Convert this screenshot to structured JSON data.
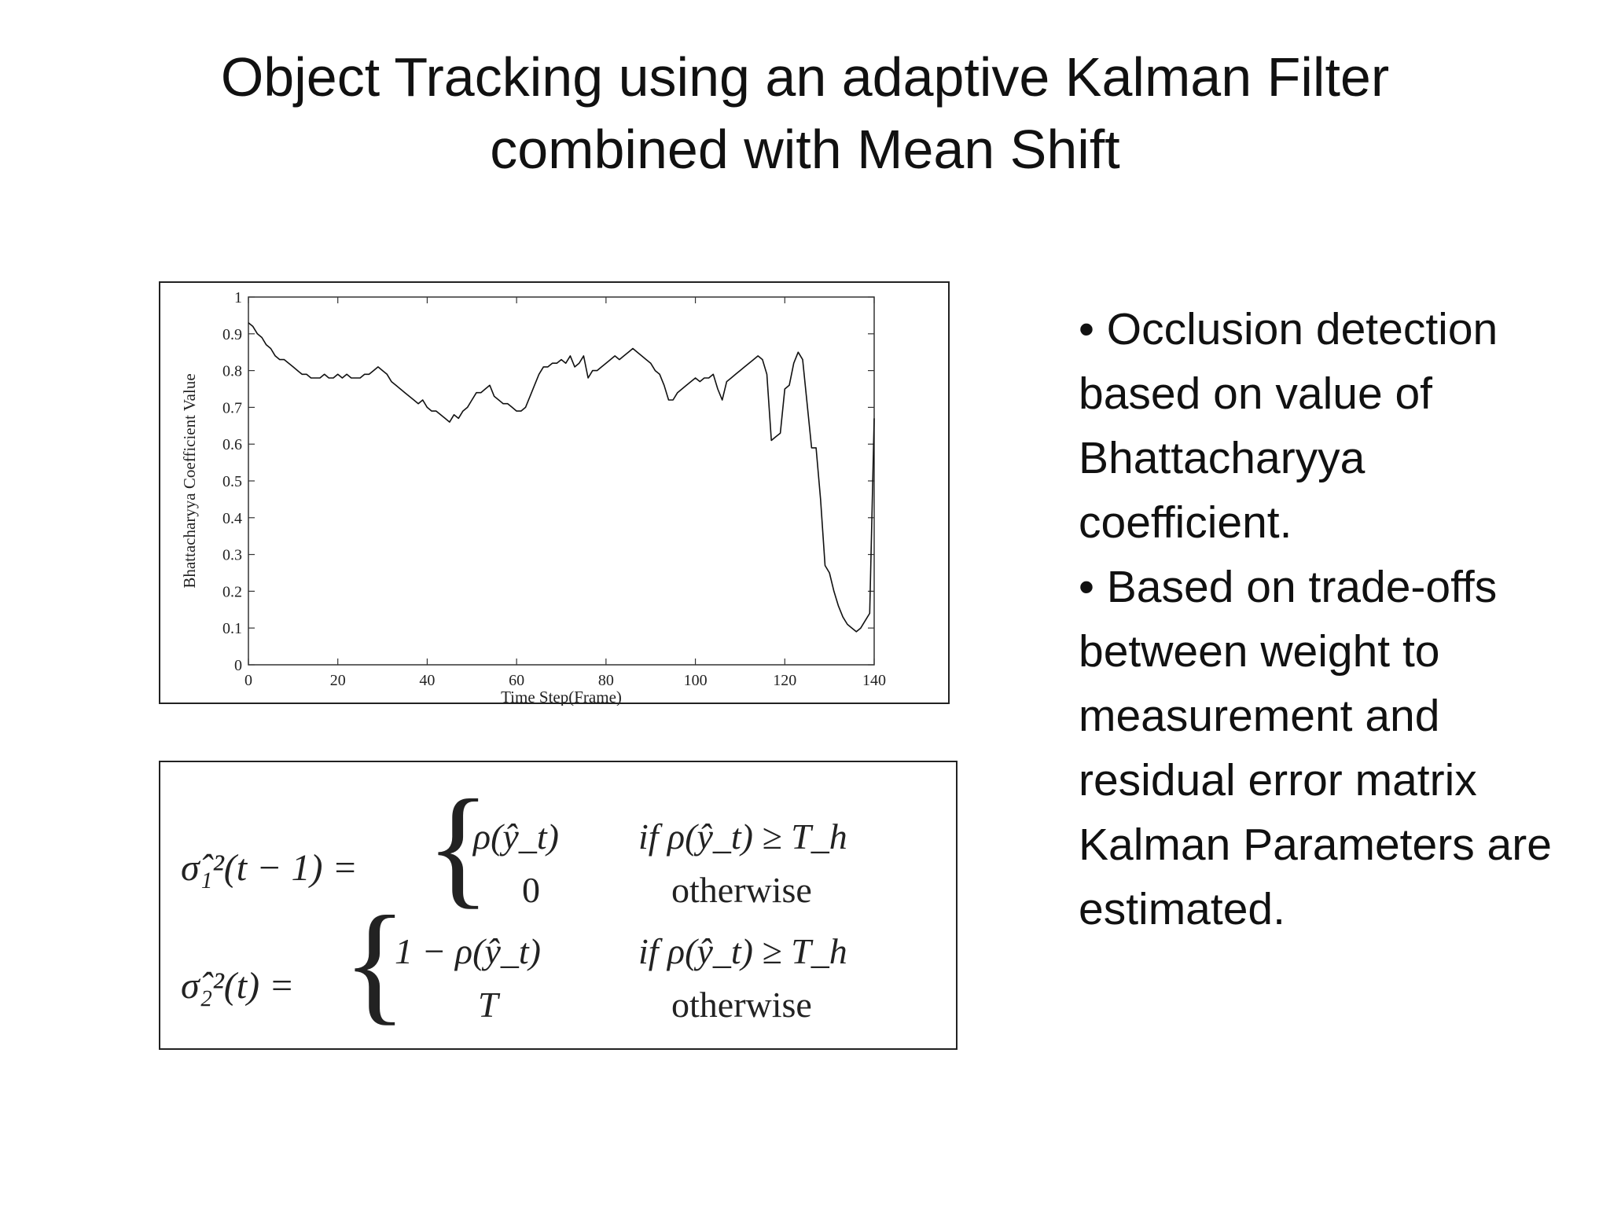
{
  "slide": {
    "title_line1": "Object Tracking using an adaptive Kalman Filter",
    "title_line2": "combined with Mean Shift",
    "bullets": [
      "• Occlusion detection based on value of Bhattacharyya coefficient.",
      "•  Based on trade-offs between weight to measurement and residual error matrix Kalman Parameters are estimated."
    ]
  },
  "formula": {
    "eq1_lhs": "σ̂₁²(t − 1) =",
    "eq1_case1_value": "ρ(ŷ_t)",
    "eq1_case1_cond": "if ρ(ŷ_t) ≥ T_h",
    "eq1_case2_value": "0",
    "eq1_case2_cond": "otherwise",
    "eq2_lhs": "σ̂₂²(t) =",
    "eq2_case1_value": "1 − ρ(ŷ_t)",
    "eq2_case1_cond": "if ρ(ŷ_t) ≥ T_h",
    "eq2_case2_value": "T",
    "eq2_case2_cond": "otherwise"
  },
  "chart_data": {
    "type": "line",
    "xlabel": "Time Step(Frame)",
    "ylabel": "Bhattacharyya Coefficient Value",
    "xlim": [
      0,
      140
    ],
    "ylim": [
      0,
      1
    ],
    "xticks": [
      0,
      20,
      40,
      60,
      80,
      100,
      120,
      140
    ],
    "yticks": [
      0,
      0.1,
      0.2,
      0.3,
      0.4,
      0.5,
      0.6,
      0.7,
      0.8,
      0.9,
      1
    ],
    "ytick_labels": [
      "0",
      "0.1",
      "0.2",
      "0.3",
      "0.4",
      "0.5",
      "0.6",
      "0.7",
      "0.8",
      "0.9",
      "1"
    ],
    "grid": false,
    "series": [
      {
        "x": [
          0,
          1,
          2,
          3,
          4,
          5,
          6,
          7,
          8,
          9,
          10,
          11,
          12,
          13,
          14,
          15,
          16,
          17,
          18,
          19,
          20,
          21,
          22,
          23,
          24,
          25,
          26,
          27,
          28,
          29,
          30,
          31,
          32,
          33,
          34,
          35,
          36,
          37,
          38,
          39,
          40,
          41,
          42,
          43,
          44,
          45,
          46,
          47,
          48,
          49,
          50,
          51,
          52,
          53,
          54,
          55,
          56,
          57,
          58,
          59,
          60,
          61,
          62,
          63,
          64,
          65,
          66,
          67,
          68,
          69,
          70,
          71,
          72,
          73,
          74,
          75,
          76,
          77,
          78,
          79,
          80,
          81,
          82,
          83,
          84,
          85,
          86,
          87,
          88,
          89,
          90,
          91,
          92,
          93,
          94,
          95,
          96,
          97,
          98,
          99,
          100,
          101,
          102,
          103,
          104,
          105,
          106,
          107,
          108,
          109,
          110,
          111,
          112,
          113,
          114,
          115,
          116,
          117,
          118,
          119,
          120,
          121,
          122,
          123,
          124,
          125,
          126,
          127,
          128,
          129,
          130,
          131,
          132,
          133,
          134,
          135,
          136,
          137,
          138,
          139,
          140
        ],
        "y": [
          0.93,
          0.92,
          0.9,
          0.89,
          0.87,
          0.86,
          0.84,
          0.83,
          0.83,
          0.82,
          0.81,
          0.8,
          0.79,
          0.79,
          0.78,
          0.78,
          0.78,
          0.79,
          0.78,
          0.78,
          0.79,
          0.78,
          0.79,
          0.78,
          0.78,
          0.78,
          0.79,
          0.79,
          0.8,
          0.81,
          0.8,
          0.79,
          0.77,
          0.76,
          0.75,
          0.74,
          0.73,
          0.72,
          0.71,
          0.72,
          0.7,
          0.69,
          0.69,
          0.68,
          0.67,
          0.66,
          0.68,
          0.67,
          0.69,
          0.7,
          0.72,
          0.74,
          0.74,
          0.75,
          0.76,
          0.73,
          0.72,
          0.71,
          0.71,
          0.7,
          0.69,
          0.69,
          0.7,
          0.73,
          0.76,
          0.79,
          0.81,
          0.81,
          0.82,
          0.82,
          0.83,
          0.82,
          0.84,
          0.81,
          0.82,
          0.84,
          0.78,
          0.8,
          0.8,
          0.81,
          0.82,
          0.83,
          0.84,
          0.83,
          0.84,
          0.85,
          0.86,
          0.85,
          0.84,
          0.83,
          0.82,
          0.8,
          0.79,
          0.76,
          0.72,
          0.72,
          0.74,
          0.75,
          0.76,
          0.77,
          0.78,
          0.77,
          0.78,
          0.78,
          0.79,
          0.75,
          0.72,
          0.77,
          0.78,
          0.79,
          0.8,
          0.81,
          0.82,
          0.83,
          0.84,
          0.83,
          0.79,
          0.61,
          0.62,
          0.63,
          0.75,
          0.76,
          0.82,
          0.85,
          0.83,
          0.71,
          0.59,
          0.59,
          0.45,
          0.27,
          0.25,
          0.2,
          0.16,
          0.13,
          0.11,
          0.1,
          0.09,
          0.1,
          0.12,
          0.14,
          0.67
        ]
      }
    ]
  }
}
